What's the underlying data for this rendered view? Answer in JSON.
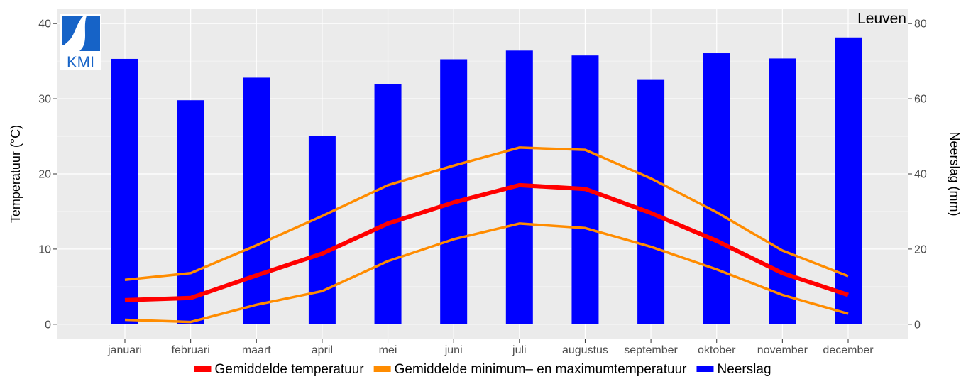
{
  "chart_data": {
    "type": "bar+line",
    "location_label": "Leuven",
    "logo_text": "KMI",
    "categories": [
      "januari",
      "februari",
      "maart",
      "april",
      "mei",
      "juni",
      "juli",
      "augustus",
      "september",
      "oktober",
      "november",
      "december"
    ],
    "y_left": {
      "label": "Temperatuur (°C)",
      "range": [
        -2,
        42
      ],
      "ticks": [
        0,
        10,
        20,
        30,
        40
      ]
    },
    "y_right": {
      "label": "Neerslag (mm)",
      "range": [
        -4,
        84
      ],
      "ticks": [
        0,
        20,
        40,
        60,
        80
      ]
    },
    "series": [
      {
        "name": "Neerslag",
        "type": "bar",
        "axis": "right",
        "color": "#0000ff",
        "values": [
          70.6,
          59.6,
          65.6,
          50.1,
          63.8,
          70.5,
          72.8,
          71.5,
          65.0,
          72.1,
          70.7,
          76.3
        ]
      },
      {
        "name": "Gemiddelde minimum– en maximumtemperatuur",
        "type": "line",
        "axis": "left",
        "color": "#ff8c00",
        "id": "max",
        "values": [
          5.9,
          6.8,
          10.5,
          14.4,
          18.5,
          21.1,
          23.5,
          23.2,
          19.4,
          14.9,
          9.8,
          6.4
        ]
      },
      {
        "name": "Gemiddelde minimum– en maximumtemperatuur",
        "type": "line",
        "axis": "left",
        "color": "#ff8c00",
        "id": "min",
        "values": [
          0.6,
          0.3,
          2.6,
          4.4,
          8.4,
          11.3,
          13.4,
          12.8,
          10.3,
          7.3,
          3.9,
          1.4
        ]
      },
      {
        "name": "Gemiddelde temperatuur",
        "type": "line",
        "axis": "left",
        "color": "#ff0000",
        "id": "avg",
        "values": [
          3.2,
          3.5,
          6.5,
          9.4,
          13.4,
          16.2,
          18.5,
          18.0,
          14.8,
          11.1,
          6.8,
          3.9
        ]
      }
    ],
    "grid": true,
    "legend_position": "bottom",
    "legend": [
      {
        "label": "Gemiddelde temperatuur",
        "color": "#ff0000"
      },
      {
        "label": "Gemiddelde minimum– en maximumtemperatuur",
        "color": "#ff8c00"
      },
      {
        "label": "Neerslag",
        "color": "#0000ff"
      }
    ]
  }
}
